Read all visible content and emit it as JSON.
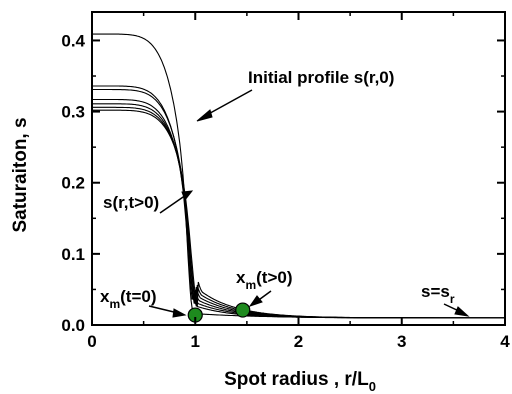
{
  "chart_data": {
    "type": "line",
    "xlabel": "Spot radius , r/L",
    "xlabel_sub": "0",
    "ylabel": "Saturaiton, s",
    "xlim": [
      0,
      4
    ],
    "ylim": [
      0,
      0.44
    ],
    "xticks": [
      "0",
      "1",
      "2",
      "3",
      "4"
    ],
    "yticks": [
      "0.0",
      "0.1",
      "0.2",
      "0.3",
      "0.4"
    ],
    "grid": false,
    "line_color": "#000000",
    "marker_color": "#1e8a1e",
    "series": [
      {
        "s0": 0.409,
        "r_front": 1.0,
        "w": 0.06,
        "tail": 0.0
      },
      {
        "s0": 0.336,
        "r_front": 1.02,
        "w": 0.07,
        "tail": 0.004
      },
      {
        "s0": 0.331,
        "r_front": 1.03,
        "w": 0.07,
        "tail": 0.005
      },
      {
        "s0": 0.317,
        "r_front": 1.04,
        "w": 0.08,
        "tail": 0.006
      },
      {
        "s0": 0.311,
        "r_front": 1.05,
        "w": 0.08,
        "tail": 0.007
      },
      {
        "s0": 0.306,
        "r_front": 1.06,
        "w": 0.09,
        "tail": 0.008
      },
      {
        "s0": 0.302,
        "r_front": 1.07,
        "w": 0.09,
        "tail": 0.009
      }
    ],
    "baseline_s": 0.01,
    "markers": [
      {
        "x": 1.0,
        "y": 0.014
      },
      {
        "x": 1.46,
        "y": 0.021
      }
    ],
    "annotations": {
      "initial": "Initial profile s(r,0)",
      "later": "s(r,t>0)",
      "xm0_main": "x",
      "xm0_sub": "m",
      "xm0_rest": "(t=0)",
      "xmt_main": "x",
      "xmt_sub": "m",
      "xmt_rest": "(t>0)",
      "sr_main": "s=s",
      "sr_sub": "r"
    }
  }
}
